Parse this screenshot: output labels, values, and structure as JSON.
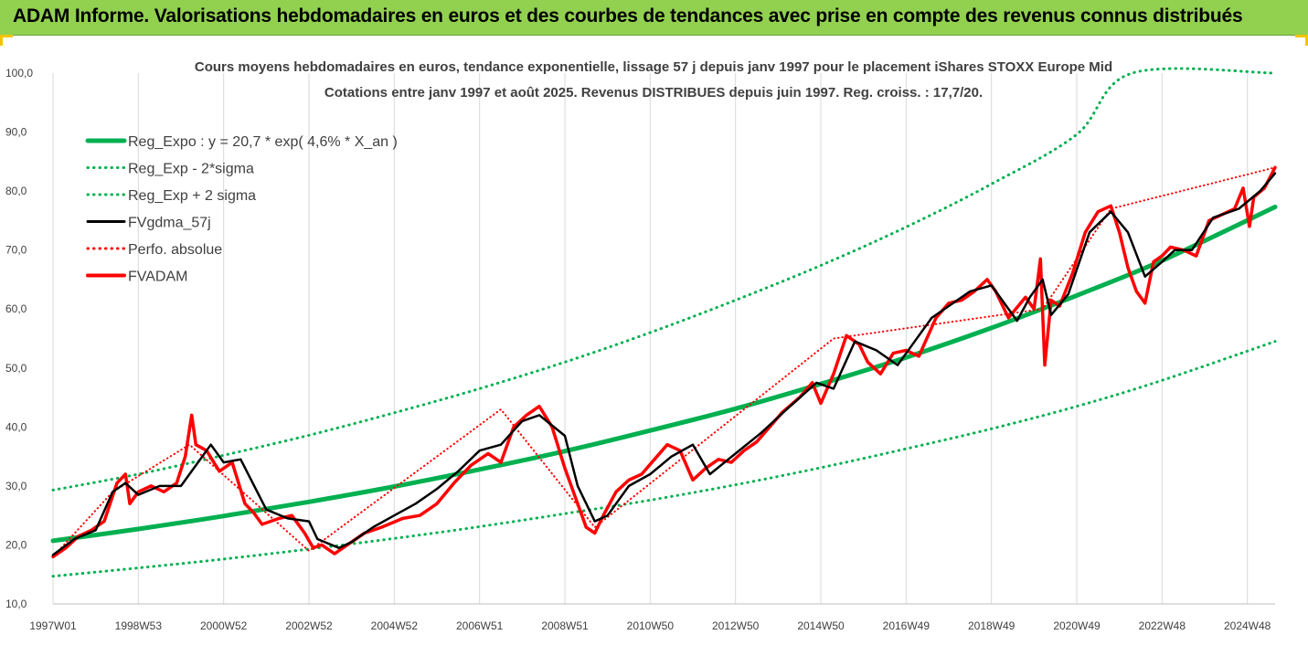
{
  "banner": {
    "title": "ADAM Informe. Valorisations hebdomadaires en euros et des courbes de tendances avec prise en compte des revenus connus distribués"
  },
  "colors": {
    "banner": "#92d050",
    "trend": "#00b050",
    "actual": "#ff0000",
    "smoothed": "#000000",
    "grid": "#d9d9d9"
  },
  "chart_data": {
    "type": "line",
    "title": "Cours moyens hebdomadaires en euros, tendance exponentielle, lissage 57 j depuis janv 1997  pour le placement iShares STOXX Europe Mid",
    "subtitle": "Cotations entre janv 1997 et août 2025.  Revenus DISTRIBUES depuis juin 1997.  Reg. croiss. : 17,7/20.",
    "xlabel": "",
    "ylabel": "",
    "ylim": [
      10,
      100
    ],
    "xlim": [
      1997.0,
      2025.65
    ],
    "grid": "vertical",
    "legend_position": "top-left",
    "y_ticks": [
      "10,0",
      "20,0",
      "30,0",
      "40,0",
      "50,0",
      "60,0",
      "70,0",
      "80,0",
      "90,0",
      "100,0"
    ],
    "x_ticks": [
      {
        "label": "1997W01",
        "x": 1997.0
      },
      {
        "label": "1998W53",
        "x": 1999.0
      },
      {
        "label": "2000W52",
        "x": 2001.0
      },
      {
        "label": "2002W52",
        "x": 2003.0
      },
      {
        "label": "2004W52",
        "x": 2005.0
      },
      {
        "label": "2006W51",
        "x": 2007.0
      },
      {
        "label": "2008W51",
        "x": 2009.0
      },
      {
        "label": "2010W50",
        "x": 2011.0
      },
      {
        "label": "2012W50",
        "x": 2013.0
      },
      {
        "label": "2014W50",
        "x": 2015.0
      },
      {
        "label": "2016W49",
        "x": 2017.0
      },
      {
        "label": "2018W49",
        "x": 2019.0
      },
      {
        "label": "2020W49",
        "x": 2021.0
      },
      {
        "label": "2022W48",
        "x": 2023.0
      },
      {
        "label": "2024W48",
        "x": 2025.0
      }
    ],
    "series": [
      {
        "name": "Reg_Expo : y = 20,7 * exp( 4,6% *  X_an )",
        "color": "#00b050",
        "style": "solid",
        "x": [
          1997.0,
          1999.0,
          2001.0,
          2003.0,
          2005.0,
          2007.0,
          2009.0,
          2011.0,
          2013.0,
          2015.0,
          2017.0,
          2019.0,
          2021.0,
          2023.0,
          2025.65
        ],
        "y": [
          20.7,
          22.7,
          24.9,
          27.3,
          29.9,
          32.8,
          35.9,
          39.4,
          43.1,
          47.3,
          51.8,
          56.8,
          62.3,
          68.2,
          77.3
        ]
      },
      {
        "name": "Reg_Exp - 2*sigma",
        "color": "#00b050",
        "style": "dotted",
        "x": [
          1997.0,
          1999.0,
          2001.0,
          2003.0,
          2005.0,
          2007.0,
          2009.0,
          2011.0,
          2013.0,
          2015.0,
          2017.0,
          2019.0,
          2021.0,
          2023.0,
          2025.65
        ],
        "y": [
          14.7,
          16.1,
          17.6,
          19.3,
          21.1,
          23.1,
          25.3,
          27.6,
          30.2,
          33.1,
          36.3,
          39.7,
          43.5,
          47.9,
          54.5
        ]
      },
      {
        "name": "Reg_Exp + 2 sigma",
        "color": "#00b050",
        "style": "dotted",
        "x": [
          1997.0,
          1999.0,
          2001.0,
          2003.0,
          2005.0,
          2007.0,
          2009.0,
          2011.0,
          2013.0,
          2015.0,
          2017.0,
          2019.0,
          2021.0,
          2022.3,
          2025.65
        ],
        "y": [
          29.3,
          32.0,
          35.2,
          38.6,
          42.4,
          46.5,
          51.0,
          56.0,
          61.5,
          67.4,
          73.9,
          81.2,
          89.6,
          100.0,
          100.0
        ]
      },
      {
        "name": "FVgdma_57j",
        "color": "#000000",
        "style": "solid",
        "x": [
          1997.0,
          1997.5,
          1998.0,
          1998.4,
          1998.7,
          1999.0,
          1999.5,
          2000.0,
          2000.2,
          2000.7,
          2001.0,
          2001.4,
          2002.0,
          2002.5,
          2003.0,
          2003.2,
          2003.7,
          2004.0,
          2004.5,
          2005.0,
          2005.5,
          2006.0,
          2006.5,
          2007.0,
          2007.5,
          2008.0,
          2008.4,
          2009.0,
          2009.3,
          2009.7,
          2010.0,
          2010.5,
          2011.0,
          2011.5,
          2012.0,
          2012.4,
          2013.0,
          2013.6,
          2014.2,
          2014.9,
          2015.3,
          2015.8,
          2016.3,
          2016.8,
          2017.1,
          2017.6,
          2018.0,
          2018.5,
          2019.0,
          2019.6,
          2019.9,
          2020.2,
          2020.4,
          2020.8,
          2021.3,
          2021.8,
          2022.2,
          2022.6,
          2023.0,
          2023.3,
          2023.7,
          2024.2,
          2024.8,
          2025.3,
          2025.65
        ],
        "y": [
          18.3,
          21.0,
          22.5,
          29.0,
          30.5,
          28.5,
          30.0,
          30.0,
          32.0,
          37.0,
          34.0,
          34.5,
          26.0,
          24.5,
          24.0,
          21.0,
          19.5,
          20.5,
          23.0,
          25.0,
          27.0,
          29.5,
          32.5,
          36.0,
          37.0,
          41.0,
          42.0,
          38.5,
          30.0,
          24.0,
          25.0,
          30.0,
          32.0,
          35.0,
          37.0,
          32.0,
          35.5,
          39.0,
          43.0,
          47.5,
          46.5,
          54.5,
          53.0,
          50.5,
          53.5,
          58.5,
          60.5,
          63.0,
          64.0,
          58.0,
          62.0,
          65.0,
          59.0,
          62.5,
          73.0,
          76.5,
          73.0,
          65.5,
          68.0,
          70.0,
          70.0,
          75.5,
          77.0,
          80.0,
          83.0
        ]
      },
      {
        "name": "Perfo. absolue",
        "color": "#ff0000",
        "style": "dotted",
        "x": [
          1997.0,
          1998.4,
          2000.2,
          2003.0,
          2007.5,
          2009.7,
          2015.3,
          2020.2,
          2021.8,
          2025.65
        ],
        "y": [
          18.0,
          29.0,
          37.0,
          19.0,
          43.0,
          23.0,
          55.0,
          60.0,
          77.0,
          84.0
        ]
      },
      {
        "name": "FVADAM",
        "color": "#ff0000",
        "style": "solid",
        "x": [
          1997.0,
          1997.3,
          1997.6,
          1997.9,
          1998.2,
          1998.5,
          1998.7,
          1998.8,
          1999.0,
          1999.3,
          1999.6,
          1999.9,
          2000.1,
          2000.25,
          2000.35,
          2000.6,
          2000.9,
          2001.2,
          2001.5,
          2001.7,
          2001.9,
          2002.3,
          2002.6,
          2002.9,
          2003.1,
          2003.3,
          2003.6,
          2003.9,
          2004.3,
          2004.7,
          2005.2,
          2005.6,
          2006.0,
          2006.4,
          2006.8,
          2007.2,
          2007.5,
          2007.8,
          2008.1,
          2008.4,
          2008.7,
          2009.0,
          2009.3,
          2009.5,
          2009.7,
          2009.9,
          2010.2,
          2010.5,
          2010.8,
          2011.1,
          2011.4,
          2011.7,
          2012.0,
          2012.3,
          2012.6,
          2012.9,
          2013.2,
          2013.5,
          2013.8,
          2014.1,
          2014.5,
          2014.8,
          2015.0,
          2015.3,
          2015.6,
          2015.9,
          2016.1,
          2016.4,
          2016.7,
          2017.0,
          2017.3,
          2017.7,
          2018.0,
          2018.3,
          2018.6,
          2018.9,
          2019.1,
          2019.4,
          2019.8,
          2020.0,
          2020.15,
          2020.25,
          2020.4,
          2020.6,
          2020.9,
          2021.2,
          2021.5,
          2021.8,
          2022.0,
          2022.2,
          2022.4,
          2022.6,
          2022.8,
          2023.0,
          2023.2,
          2023.5,
          2023.8,
          2024.1,
          2024.4,
          2024.7,
          2024.9,
          2025.05,
          2025.15,
          2025.4,
          2025.65
        ],
        "y": [
          18.0,
          19.5,
          21.5,
          22.5,
          24.0,
          30.5,
          32.0,
          27.0,
          29.0,
          30.0,
          29.0,
          30.5,
          35.0,
          42.0,
          37.0,
          36.0,
          32.5,
          34.0,
          27.0,
          25.5,
          23.5,
          24.5,
          25.0,
          22.0,
          19.5,
          20.0,
          18.5,
          20.0,
          22.0,
          23.0,
          24.5,
          25.0,
          27.0,
          30.5,
          33.5,
          35.5,
          34.0,
          40.0,
          42.0,
          43.5,
          40.0,
          33.0,
          27.0,
          23.0,
          22.0,
          25.0,
          29.0,
          31.0,
          32.0,
          34.5,
          37.0,
          36.0,
          31.0,
          33.0,
          34.5,
          34.0,
          36.0,
          37.5,
          40.0,
          42.5,
          45.0,
          47.5,
          44.0,
          49.0,
          55.5,
          54.0,
          51.0,
          49.0,
          52.5,
          53.0,
          52.0,
          58.5,
          61.0,
          61.5,
          63.0,
          65.0,
          63.0,
          58.5,
          62.0,
          60.0,
          68.5,
          50.5,
          61.5,
          60.5,
          66.0,
          73.0,
          76.5,
          77.5,
          73.0,
          67.0,
          63.0,
          61.0,
          68.0,
          69.0,
          70.5,
          70.0,
          69.0,
          75.0,
          76.0,
          77.0,
          80.5,
          74.0,
          79.0,
          80.5,
          84.0
        ]
      }
    ]
  }
}
